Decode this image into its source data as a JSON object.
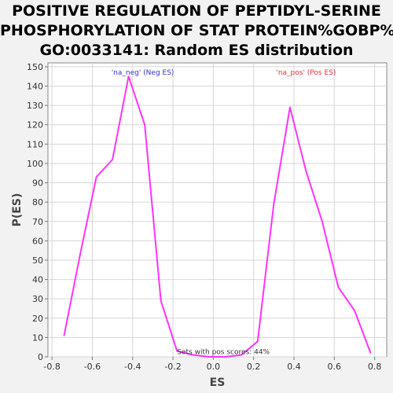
{
  "chart_data": {
    "type": "line",
    "title_lines": [
      "POSITIVE REGULATION OF PEPTIDYL-SERINE",
      "PHOSPHORYLATION OF STAT PROTEIN%GOBP%",
      "GO:0033141: Random ES distribution"
    ],
    "xlabel": "ES",
    "ylabel": "P(ES)",
    "xlim": [
      -0.82,
      0.86
    ],
    "ylim": [
      0,
      152
    ],
    "xticks": [
      -0.8,
      -0.6,
      -0.4,
      -0.2,
      0.0,
      0.2,
      0.4,
      0.6,
      0.8
    ],
    "xtick_labels": [
      "-0.8",
      "-0.6",
      "-0.4",
      "-0.2",
      "0.0",
      "0.2",
      "0.4",
      "0.6",
      "0.8"
    ],
    "yticks": [
      0,
      10,
      20,
      30,
      40,
      50,
      60,
      70,
      80,
      90,
      100,
      110,
      120,
      130,
      140,
      150
    ],
    "ytick_labels": [
      "0",
      "10",
      "20",
      "30",
      "40",
      "50",
      "60",
      "70",
      "80",
      "90",
      "100",
      "110",
      "120",
      "130",
      "140",
      "150"
    ],
    "grid": true,
    "legend": "none",
    "series": [
      {
        "color": "#ff33ff",
        "x": [
          -0.74,
          -0.66,
          -0.58,
          -0.5,
          -0.42,
          -0.34,
          -0.26,
          -0.18,
          -0.1,
          -0.02,
          0.06,
          0.14,
          0.22,
          0.3,
          0.38,
          0.46,
          0.54,
          0.62,
          0.7,
          0.78
        ],
        "y": [
          11,
          53,
          93,
          102,
          145,
          120,
          29,
          3,
          1,
          0,
          0,
          1,
          8,
          79,
          129,
          96,
          70,
          36,
          24,
          2
        ]
      }
    ],
    "annotations": [
      {
        "text": "'na_neg' (Neg ES)",
        "x": -0.35,
        "y": 146,
        "color": "#3333cc"
      },
      {
        "text": "'na_pos' (Pos ES)",
        "x": 0.46,
        "y": 146,
        "color": "#dd3333"
      },
      {
        "text": "Sets with pos scores: 44%",
        "x": 0.05,
        "y": 1.5,
        "color": "#333333"
      }
    ]
  }
}
